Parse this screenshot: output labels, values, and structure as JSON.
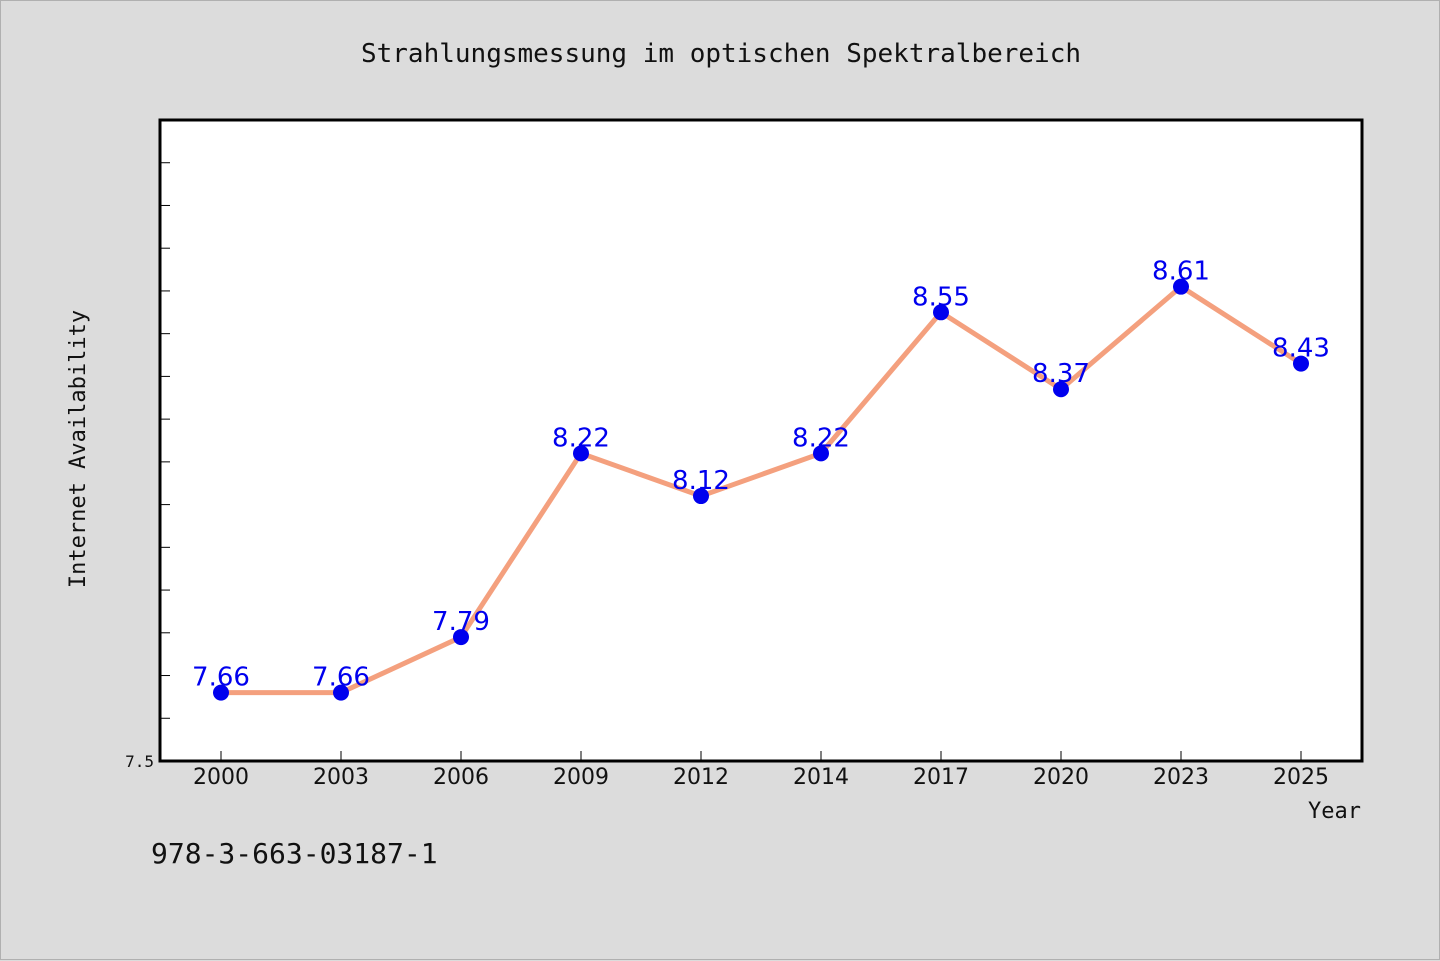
{
  "chart_data": {
    "type": "line",
    "title": "Strahlungsmessung im optischen Spektralbereich",
    "xlabel": "Year",
    "ylabel": "Internet Availability",
    "categories": [
      "2000",
      "2003",
      "2006",
      "2009",
      "2012",
      "2014",
      "2017",
      "2020",
      "2023",
      "2025"
    ],
    "series": [
      {
        "values": [
          7.66,
          7.66,
          7.79,
          8.22,
          8.12,
          8.22,
          8.55,
          8.37,
          8.61,
          8.43
        ]
      }
    ],
    "data_labels": [
      "7.66",
      "7.66",
      "7.79",
      "8.22",
      "8.12",
      "8.22",
      "8.55",
      "8.37",
      "8.61",
      "8.43"
    ],
    "ylim": [
      7.5,
      9.0
    ],
    "yticks_labeled": [
      "7.5"
    ],
    "grid": false,
    "line_color": "#f4a07e",
    "marker_color": "#0000ee",
    "label_color": "#0000ee"
  },
  "footer_code": "978-3-663-03187-1"
}
